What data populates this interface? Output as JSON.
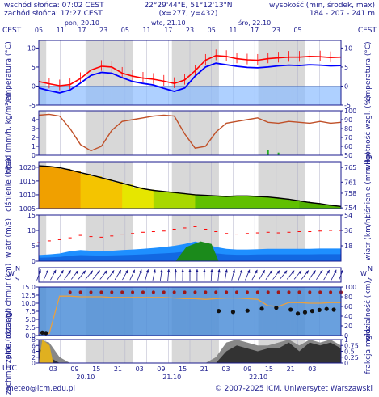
{
  "header": {
    "sunrise": "wschód słońca: 07:02 CEST",
    "sunset": "zachód słońca: 17:27 CEST",
    "coords": "22°29'44\"E, 51°12'13\"N",
    "grid": "(x=277, y=432)",
    "elev_label": "wysokość (min, środek, max)",
    "elev_values": "184 - 207 - 241 m",
    "tz_left": "CEST",
    "tz_right": "CEST",
    "tz_bottom": "UTC"
  },
  "days_top": [
    "pon, 20.10",
    "wto, 21.10",
    "śro, 22.10"
  ],
  "hours_top": [
    "05",
    "11",
    "17",
    "23",
    "05",
    "11",
    "17",
    "23",
    "05",
    "11",
    "17",
    "23",
    "05"
  ],
  "hours_bottom": [
    "03",
    "09",
    "15",
    "21",
    "03",
    "09",
    "15",
    "21",
    "03",
    "09",
    "15",
    "21",
    "03"
  ],
  "days_bottom": [
    "20.10",
    "21.10",
    "22.10"
  ],
  "footer": {
    "email": "meteo@icm.edu.pl",
    "copyright": "© 2007-2025 ICM, Uniwersytet Warszawski"
  },
  "colors": {
    "axis": "#1a1a8c",
    "temp_line": "#ff0000",
    "temp_min": "#0000ff",
    "humidity": "#c05028",
    "precip": "#22aa22",
    "below_zero": "#8cbcff",
    "wind_area": "#1e8fff",
    "gust_area": "#0a4fcf",
    "night": "#d8d8d8",
    "day": "#ffffff"
  },
  "chart_data": [
    {
      "type": "line",
      "ylabel": "temperatura (°C)",
      "ylabel_right": "temperatura (°C)",
      "ylim": [
        -5,
        12
      ],
      "yticks": [
        -5,
        0,
        5,
        10
      ],
      "series": [
        {
          "values": [
            1.2,
            0.6,
            0.1,
            0.4,
            2.0,
            4.2,
            5.2,
            5.0,
            3.4,
            2.6,
            2.1,
            1.8,
            1.3,
            0.7,
            1.6,
            4.0,
            6.8,
            8.0,
            7.8,
            7.2,
            6.9,
            6.8,
            7.2,
            7.4,
            7.6,
            7.6,
            7.8,
            7.7,
            7.5,
            7.6
          ]
        },
        {
          "values": [
            -0.5,
            -1.2,
            -1.8,
            -1.0,
            0.8,
            2.8,
            3.6,
            3.4,
            2.2,
            1.2,
            0.7,
            0.3,
            -0.6,
            -1.4,
            -0.5,
            2.6,
            5.0,
            6.0,
            5.6,
            5.2,
            4.9,
            4.8,
            5.0,
            5.3,
            5.5,
            5.4,
            5.6,
            5.5,
            5.3,
            5.4
          ]
        }
      ],
      "x": [
        "20.10 05:00",
        "+3h",
        "+6h",
        "+9h",
        "+12h",
        "+15h",
        "+18h",
        "+21h",
        "+24h",
        "+27h",
        "+30h",
        "+33h",
        "+36h",
        "+39h",
        "+42h",
        "+45h",
        "+48h",
        "+51h",
        "+54h",
        "+57h",
        "+60h",
        "+63h",
        "+66h",
        "+69h",
        "+72h",
        "+75h",
        "+78h",
        "+81h",
        "+84h",
        "+87h"
      ]
    },
    {
      "type": "line",
      "ylabel": "opad (mm/h, kg/m²/h)",
      "ylabel_right": "wilgotność wzgl. (%)",
      "ylim_left": [
        0,
        5
      ],
      "yticks_left": [
        0,
        1,
        2,
        3,
        4
      ],
      "ylim_right": [
        50,
        100
      ],
      "yticks_right": [
        50,
        60,
        70,
        80,
        90,
        100
      ],
      "series": [
        {
          "values": [
            95,
            96,
            94,
            80,
            62,
            55,
            60,
            78,
            88,
            90,
            92,
            94,
            95,
            94,
            74,
            58,
            60,
            76,
            86,
            88,
            90,
            92,
            87,
            86,
            88,
            87,
            86,
            88,
            86,
            87
          ]
        }
      ],
      "precip": [
        0,
        0,
        0,
        0,
        0,
        0,
        0,
        0,
        0,
        0,
        0,
        0,
        0,
        0,
        0,
        0,
        0,
        0,
        0,
        0,
        0,
        0,
        0.6,
        0.3,
        0,
        0,
        0,
        0,
        0,
        0
      ]
    },
    {
      "type": "area",
      "ylabel": "ciśnienie (hPa)",
      "ylabel_right": "ciśnienie (mm Hg)",
      "ylim": [
        1005,
        1022
      ],
      "yticks": [
        1005,
        1010,
        1015,
        1020
      ],
      "yticks_right": [
        754,
        758,
        761,
        765
      ],
      "series": [
        {
          "values": [
            1020.5,
            1020.3,
            1019.8,
            1019.0,
            1018.0,
            1017.2,
            1016.2,
            1015.2,
            1014.2,
            1013.2,
            1012.2,
            1011.6,
            1011.2,
            1010.8,
            1010.4,
            1010.0,
            1009.8,
            1009.6,
            1009.4,
            1009.6,
            1009.6,
            1009.4,
            1009.2,
            1008.8,
            1008.4,
            1007.8,
            1007.2,
            1006.8,
            1006.2,
            1005.8
          ]
        }
      ]
    },
    {
      "type": "area",
      "ylabel": "wiatr (m/s)",
      "ylabel_right": "wiatr (km/h)",
      "ylim": [
        0,
        15
      ],
      "yticks": [
        0,
        5,
        10,
        15
      ],
      "yticks_right": [
        18,
        36,
        54
      ],
      "series": [
        {
          "values": [
            2.0,
            2.2,
            2.5,
            3.2,
            3.6,
            3.4,
            3.3,
            3.4,
            3.6,
            3.8,
            4.0,
            4.3,
            4.6,
            5.0,
            5.6,
            6.4,
            5.6,
            4.6,
            4.0,
            3.8,
            3.8,
            3.9,
            4.0,
            4.0,
            4.0,
            4.0,
            4.0,
            4.1,
            4.1,
            4.1
          ]
        },
        {
          "values": [
            6.0,
            6.6,
            7.0,
            7.6,
            8.4,
            8.0,
            7.8,
            8.2,
            8.8,
            9.0,
            9.4,
            9.6,
            9.8,
            10.4,
            10.8,
            11.2,
            10.4,
            9.6,
            9.0,
            8.8,
            9.0,
            9.2,
            9.4,
            9.2,
            9.4,
            9.6,
            9.6,
            9.8,
            10.0,
            10.0
          ]
        }
      ]
    },
    {
      "type": "scatter",
      "ylabel": "pion. rozciągł. chmur (km)",
      "ylabel_right": "widzialność (km)",
      "ylim": [
        0,
        15
      ],
      "yticks": [
        0,
        2.5,
        5,
        7.5,
        10,
        12.5,
        15
      ],
      "yticks_right": [
        0,
        20,
        40,
        60,
        80,
        100
      ],
      "series": [
        {
          "values": [
            0.7,
            0.6,
            12.2,
            12.2,
            12.0,
            12.0,
            12.0,
            11.8,
            11.8,
            11.8,
            11.8,
            11.8,
            11.8,
            11.6,
            11.4,
            11.4,
            11.2,
            11.4,
            11.6,
            11.6,
            11.4,
            11.2,
            9.2,
            9.0,
            10.2,
            10.2,
            10.0,
            10.0,
            10.2,
            10.2
          ]
        }
      ]
    },
    {
      "type": "area",
      "ylabel": "zachmurzenie (oktanty)",
      "ylabel_right": "frakcja mgła",
      "ylim": [
        0,
        8
      ],
      "yticks": [
        0,
        2,
        4,
        6,
        8
      ],
      "yticks_right": [
        0,
        0.25,
        0.5,
        0.75,
        1
      ],
      "series": [
        {
          "values": [
            8,
            7,
            2,
            0,
            0,
            0,
            0,
            0,
            0,
            0,
            0,
            0,
            0,
            0,
            0,
            0,
            0,
            2,
            7,
            8,
            7,
            6,
            6,
            7,
            8,
            6,
            8,
            7,
            8,
            6
          ]
        },
        {
          "values": [
            5,
            2,
            0,
            0,
            0,
            0,
            0,
            0,
            0,
            0,
            0,
            0,
            0,
            0,
            0,
            0,
            0,
            0,
            4,
            6,
            5,
            4,
            5,
            5,
            7,
            4,
            7,
            6,
            7,
            5
          ]
        }
      ]
    }
  ]
}
